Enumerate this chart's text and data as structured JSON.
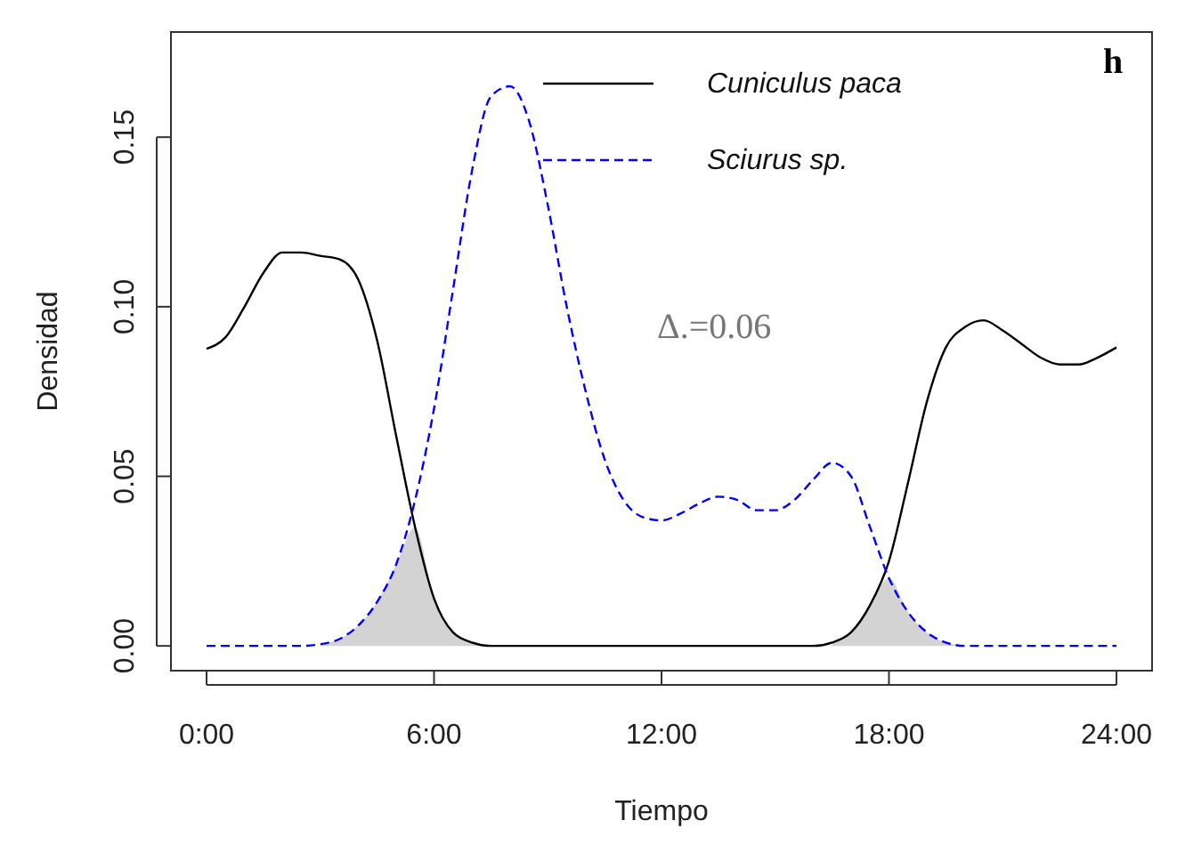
{
  "chart_data": {
    "type": "line",
    "xlabel": "Tiempo",
    "ylabel": "Densidad",
    "x": [
      0,
      0.5,
      1,
      1.5,
      2,
      2.5,
      3,
      3.5,
      4,
      4.5,
      5,
      5.5,
      6,
      6.5,
      7,
      7.5,
      8,
      8.5,
      9,
      9.5,
      10,
      10.5,
      11,
      11.5,
      12,
      12.5,
      13,
      13.5,
      14,
      14.5,
      15,
      15.5,
      16,
      16.5,
      17,
      17.5,
      18,
      18.5,
      19,
      19.5,
      20,
      20.5,
      21,
      21.5,
      22,
      22.5,
      23,
      23.5,
      24
    ],
    "xlim": [
      -0.94,
      24.94
    ],
    "xticks": [
      {
        "value": 0,
        "label": "0:00"
      },
      {
        "value": 6,
        "label": "6:00"
      },
      {
        "value": 12,
        "label": "12:00"
      },
      {
        "value": 18,
        "label": "18:00"
      },
      {
        "value": 24,
        "label": "24:00"
      }
    ],
    "ylim": [
      -0.0073,
      0.181
    ],
    "yticks": [
      {
        "value": 0,
        "label": "0.00"
      },
      {
        "value": 0.05,
        "label": "0.05"
      },
      {
        "value": 0.1,
        "label": "0.10"
      },
      {
        "value": 0.15,
        "label": "0.15"
      }
    ],
    "legend": "top",
    "grid": false,
    "marker": "none",
    "series": [
      {
        "type": "area",
        "color": "#d3d3d3",
        "values": [
          null,
          null,
          null,
          null,
          null,
          null,
          0.0005,
          0.002,
          0.006,
          0.013,
          0.024,
          0.035,
          0.014,
          0.004,
          0.001,
          0,
          null,
          null,
          null,
          null,
          null,
          null,
          null,
          null,
          null,
          null,
          null,
          null,
          null,
          null,
          null,
          null,
          null,
          0.001,
          0.004,
          0.012,
          0.02,
          0.01,
          0.004,
          0.001,
          0,
          null,
          null,
          null,
          null,
          null,
          null,
          null,
          null
        ]
      },
      {
        "name": "Cuniculus paca",
        "color": "#000000",
        "line_style": "solid",
        "values": [
          0.0876,
          0.091,
          0.1,
          0.11,
          0.116,
          0.116,
          0.115,
          0.114,
          0.108,
          0.09,
          0.062,
          0.035,
          0.014,
          0.004,
          0.001,
          0,
          0,
          0,
          0,
          0,
          0,
          0,
          0,
          0,
          0,
          0,
          0,
          0,
          0,
          0,
          0,
          0,
          0,
          0.001,
          0.004,
          0.012,
          0.025,
          0.048,
          0.072,
          0.088,
          0.094,
          0.096,
          0.093,
          0.089,
          0.085,
          0.083,
          0.083,
          0.085,
          0.088
        ]
      },
      {
        "name": "Sciurus sp.",
        "color": "#0000ff",
        "line_style": "dashed",
        "values": [
          0,
          0,
          0,
          0,
          0,
          0,
          0.0005,
          0.002,
          0.006,
          0.013,
          0.024,
          0.043,
          0.07,
          0.105,
          0.14,
          0.162,
          0.165,
          0.155,
          0.13,
          0.1,
          0.075,
          0.055,
          0.043,
          0.038,
          0.037,
          0.039,
          0.042,
          0.044,
          0.043,
          0.04,
          0.04,
          0.043,
          0.049,
          0.054,
          0.05,
          0.035,
          0.02,
          0.01,
          0.004,
          0.001,
          0,
          0,
          0,
          0,
          0,
          0,
          0,
          0,
          0
        ]
      }
    ],
    "annotations": [
      "h",
      "Δ.=0.06"
    ]
  }
}
